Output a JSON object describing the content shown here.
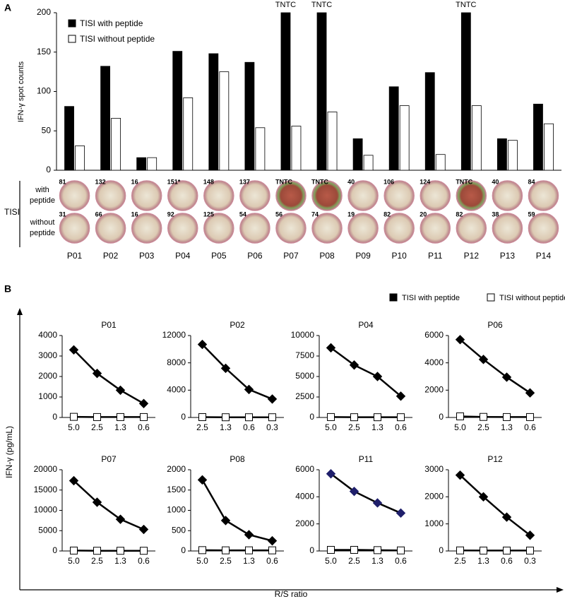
{
  "panels": [
    "A",
    "B"
  ],
  "panel_b_axes": {
    "xlabel": "R/S ratio",
    "ylabel": "IFN-γ (pg/mL)"
  },
  "chart_data": [
    {
      "type": "bar",
      "ylabel": "IFN-γ spot counts",
      "categories": [
        "P01",
        "P02",
        "P03",
        "P04",
        "P05",
        "P06",
        "P07",
        "P08",
        "P09",
        "P10",
        "P11",
        "P12",
        "P13",
        "P14"
      ],
      "series": [
        {
          "name": "TISI with peptide",
          "color": "#000000",
          "values": [
            81,
            132,
            16,
            151,
            148,
            137,
            200,
            200,
            40,
            106,
            124,
            200,
            40,
            84
          ],
          "value_labels": [
            null,
            null,
            null,
            null,
            null,
            null,
            "TNTC",
            "TNTC",
            null,
            null,
            null,
            "TNTC",
            null,
            null
          ]
        },
        {
          "name": "TISI without peptide",
          "color": "#ffffff",
          "values": [
            31,
            66,
            16,
            92,
            125,
            54,
            56,
            74,
            19,
            82,
            20,
            82,
            38,
            59
          ]
        }
      ],
      "ylim": [
        0,
        200
      ],
      "yticks": [
        0,
        50,
        100,
        150,
        200
      ],
      "wells": {
        "group_label": "TISI",
        "rows": [
          {
            "label_lines": [
              "with",
              "peptide"
            ],
            "counts": [
              "81",
              "132",
              "16",
              "151*",
              "148",
              "137",
              "TNTC",
              "TNTC",
              "40",
              "106",
              "124",
              "TNTC",
              "40",
              "84"
            ]
          },
          {
            "label_lines": [
              "without",
              "peptide"
            ],
            "counts": [
              "31",
              "66",
              "16",
              "92",
              "125",
              "54",
              "56",
              "74",
              "19",
              "82",
              "20",
              "82",
              "38",
              "59"
            ]
          }
        ]
      }
    },
    {
      "type": "line",
      "title": "P01",
      "categories": [
        "5.0",
        "2.5",
        "1.3",
        "0.6"
      ],
      "series": [
        {
          "name": "TISI with peptide",
          "color": "#000000",
          "marker": "diamond",
          "values": [
            3300,
            2150,
            1330,
            680
          ]
        },
        {
          "name": "TISI without peptide",
          "color": "#ffffff",
          "marker": "square",
          "values": [
            30,
            20,
            20,
            20
          ]
        }
      ],
      "ylim": [
        0,
        4000
      ],
      "yticks": [
        0,
        1000,
        2000,
        3000,
        4000
      ]
    },
    {
      "type": "line",
      "title": "P02",
      "categories": [
        "2.5",
        "1.3",
        "0.6",
        "0.3"
      ],
      "series": [
        {
          "name": "TISI with peptide",
          "color": "#000000",
          "marker": "diamond",
          "values": [
            10700,
            7200,
            4100,
            2700
          ]
        },
        {
          "name": "TISI without peptide",
          "color": "#ffffff",
          "marker": "square",
          "values": [
            50,
            30,
            30,
            30
          ]
        }
      ],
      "ylim": [
        0,
        12000
      ],
      "yticks": [
        0,
        4000,
        8000,
        12000
      ]
    },
    {
      "type": "line",
      "title": "P04",
      "categories": [
        "5.0",
        "2.5",
        "1.3",
        "0.6"
      ],
      "series": [
        {
          "name": "TISI with peptide",
          "color": "#000000",
          "marker": "diamond",
          "values": [
            8500,
            6400,
            5000,
            2600
          ]
        },
        {
          "name": "TISI without peptide",
          "color": "#ffffff",
          "marker": "square",
          "values": [
            50,
            30,
            30,
            30
          ]
        }
      ],
      "ylim": [
        0,
        10000
      ],
      "yticks": [
        0,
        2500,
        5000,
        7500,
        10000
      ]
    },
    {
      "type": "line",
      "title": "P06",
      "categories": [
        "5.0",
        "2.5",
        "1.3",
        "0.6"
      ],
      "series": [
        {
          "name": "TISI with peptide",
          "color": "#000000",
          "marker": "diamond",
          "values": [
            5700,
            4250,
            2950,
            1800
          ]
        },
        {
          "name": "TISI without peptide",
          "color": "#ffffff",
          "marker": "square",
          "values": [
            80,
            40,
            30,
            30
          ]
        }
      ],
      "ylim": [
        0,
        6000
      ],
      "yticks": [
        0,
        2000,
        4000,
        6000
      ]
    },
    {
      "type": "line",
      "title": "P07",
      "categories": [
        "5.0",
        "2.5",
        "1.3",
        "0.6"
      ],
      "series": [
        {
          "name": "TISI with peptide",
          "color": "#000000",
          "marker": "diamond",
          "values": [
            17300,
            12000,
            7800,
            5300
          ]
        },
        {
          "name": "TISI without peptide",
          "color": "#ffffff",
          "marker": "square",
          "values": [
            100,
            50,
            50,
            50
          ]
        }
      ],
      "ylim": [
        0,
        20000
      ],
      "yticks": [
        0,
        5000,
        10000,
        15000,
        20000
      ]
    },
    {
      "type": "line",
      "title": "P08",
      "categories": [
        "5.0",
        "2.5",
        "1.3",
        "0.6"
      ],
      "series": [
        {
          "name": "TISI with peptide",
          "color": "#000000",
          "marker": "diamond",
          "values": [
            1750,
            750,
            400,
            250
          ]
        },
        {
          "name": "TISI without peptide",
          "color": "#ffffff",
          "marker": "square",
          "values": [
            20,
            15,
            15,
            15
          ]
        }
      ],
      "ylim": [
        0,
        2000
      ],
      "yticks": [
        0,
        500,
        1000,
        1500,
        2000
      ]
    },
    {
      "type": "line",
      "title": "P11",
      "categories": [
        "5.0",
        "2.5",
        "1.3",
        "0.6"
      ],
      "series": [
        {
          "name": "TISI with peptide",
          "color": "#1f1f6b",
          "marker": "diamond",
          "values": [
            5700,
            4400,
            3550,
            2800
          ]
        },
        {
          "name": "TISI without peptide",
          "color": "#ffffff",
          "marker": "square",
          "values": [
            80,
            80,
            60,
            40
          ]
        }
      ],
      "ylim": [
        0,
        6000
      ],
      "yticks": [
        0,
        2000,
        4000,
        6000
      ]
    },
    {
      "type": "line",
      "title": "P12",
      "categories": [
        "2.5",
        "1.3",
        "0.6",
        "0.3"
      ],
      "series": [
        {
          "name": "TISI with peptide",
          "color": "#000000",
          "marker": "diamond",
          "values": [
            2800,
            2000,
            1250,
            580
          ]
        },
        {
          "name": "TISI without peptide",
          "color": "#ffffff",
          "marker": "square",
          "values": [
            20,
            15,
            15,
            15
          ]
        }
      ],
      "ylim": [
        0,
        3000
      ],
      "yticks": [
        0,
        1000,
        2000,
        3000
      ]
    }
  ]
}
